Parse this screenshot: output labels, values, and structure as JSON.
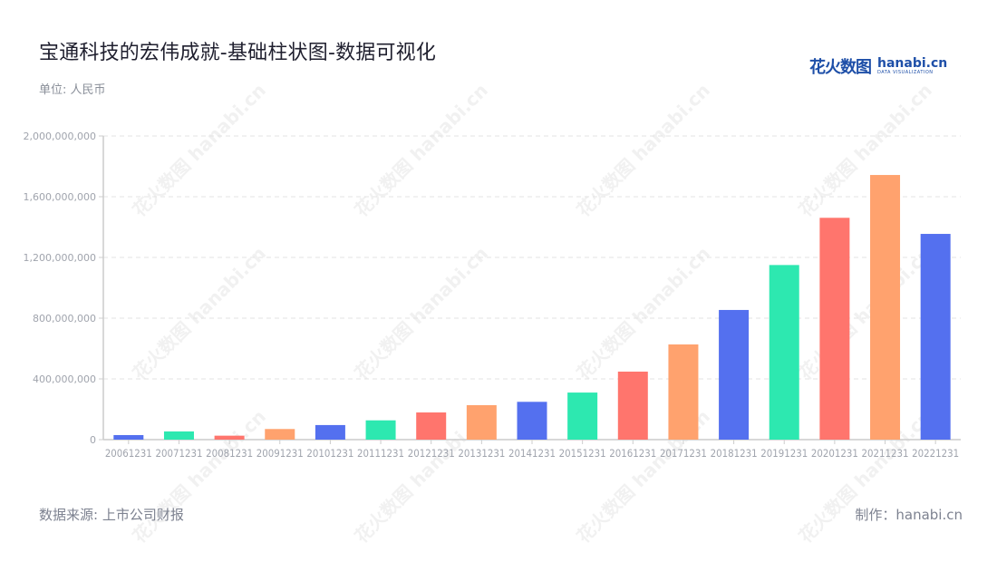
{
  "header": {
    "title": "宝通科技的宏伟成就-基础柱状图-数据可视化",
    "unit": "单位: 人民币"
  },
  "logo": {
    "cn": "花火数图",
    "en": "hanabi.cn",
    "en_sub": "DATA VISUALIZATION"
  },
  "footer": {
    "source": "数据来源: 上市公司财报",
    "credit": "制作：hanabi.cn"
  },
  "watermark": "花火数图 hanabi.cn",
  "colors": {
    "palette": [
      "#5470ef",
      "#2de8b0",
      "#ff756d",
      "#ffa26e"
    ],
    "axis": "#cccccc",
    "grid": "#e3e3e3",
    "tick_label": "#a0a4ad"
  },
  "chart_data": {
    "type": "bar",
    "title": "宝通科技的宏伟成就-基础柱状图-数据可视化",
    "xlabel": "",
    "ylabel": "单位: 人民币",
    "ylim": [
      0,
      2000000000
    ],
    "yticks": [
      0,
      400000000,
      800000000,
      1200000000,
      1600000000,
      2000000000
    ],
    "ytick_labels": [
      "0",
      "400,000,000",
      "800,000,000",
      "1,200,000,000",
      "1,600,000,000",
      "2,000,000,000"
    ],
    "grid": true,
    "legend": "none",
    "categories": [
      "20061231",
      "20071231",
      "20081231",
      "20091231",
      "20101231",
      "20111231",
      "20121231",
      "20131231",
      "20141231",
      "20151231",
      "20161231",
      "20171231",
      "20181231",
      "20191231",
      "20201231",
      "20211231",
      "20221231"
    ],
    "values": [
      30000000,
      54000000,
      26000000,
      70000000,
      96000000,
      127000000,
      179000000,
      227000000,
      249000000,
      310000000,
      448000000,
      627000000,
      854000000,
      1150000000,
      1461000000,
      1743000000,
      1355000000
    ]
  }
}
